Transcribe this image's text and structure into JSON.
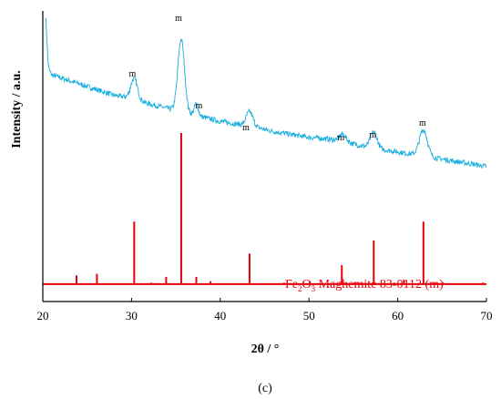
{
  "chart_data": {
    "type": "line",
    "xlabel": "2θ / °",
    "ylabel": "Intensity / a.u.",
    "xlim": [
      20,
      70
    ],
    "ylim": [
      0,
      100
    ],
    "x_ticks": [
      "20",
      "30",
      "40",
      "50",
      "60",
      "70"
    ],
    "panel_label": "(c)",
    "grid": false,
    "series": [
      {
        "kind": "xrd-pattern",
        "color": "#1aaee0",
        "background": [
          [
            20.3,
            82
          ],
          [
            21,
            78
          ],
          [
            22,
            77
          ],
          [
            23,
            76
          ],
          [
            24,
            75
          ],
          [
            25,
            74
          ],
          [
            26,
            73
          ],
          [
            27,
            72
          ],
          [
            28,
            71
          ],
          [
            29,
            70.5
          ],
          [
            30,
            70
          ],
          [
            32,
            68
          ],
          [
            34,
            66.5
          ],
          [
            36,
            65
          ],
          [
            38,
            63.5
          ],
          [
            40,
            62
          ],
          [
            42,
            61
          ],
          [
            44,
            60
          ],
          [
            46,
            58.5
          ],
          [
            48,
            57.5
          ],
          [
            50,
            56.5
          ],
          [
            52,
            56
          ],
          [
            54,
            55
          ],
          [
            56,
            53.5
          ],
          [
            58,
            52.5
          ],
          [
            60,
            51.5
          ],
          [
            62,
            50.5
          ],
          [
            64,
            49.5
          ],
          [
            66,
            48.5
          ],
          [
            68,
            47.5
          ],
          [
            70,
            46.5
          ]
        ],
        "peaks": [
          {
            "x": 20.3,
            "height": 16,
            "width": 0.2
          },
          {
            "x": 30.3,
            "height": 7,
            "width": 0.5
          },
          {
            "x": 35.6,
            "height": 25,
            "width": 0.5
          },
          {
            "x": 37.3,
            "height": 4,
            "width": 0.3
          },
          {
            "x": 43.3,
            "height": 5,
            "width": 0.5
          },
          {
            "x": 53.8,
            "height": 2.5,
            "width": 0.5
          },
          {
            "x": 57.3,
            "height": 5.5,
            "width": 0.5
          },
          {
            "x": 62.9,
            "height": 9,
            "width": 0.6
          }
        ],
        "noise": 0.9
      },
      {
        "name": "Fe2O3 Maghemite 83-0112 (m)",
        "kind": "reference-sticks",
        "color": "#e8000b",
        "baseline": 6,
        "x": [
          23.8,
          26.1,
          30.3,
          32.2,
          33.9,
          35.6,
          37.3,
          38.9,
          43.3,
          47.2,
          50.1,
          53.7,
          55.1,
          57.3,
          59.6,
          60.7,
          62.9,
          64.2,
          65.1,
          69.6
        ],
        "values": [
          9,
          9.5,
          27.5,
          6.5,
          8.5,
          58,
          8.5,
          7,
          16.5,
          6.5,
          7,
          12.5,
          6.5,
          21,
          6.5,
          7.5,
          27.5,
          6.5,
          6.5,
          6.5
        ]
      }
    ],
    "annotations": [
      {
        "text": "m",
        "x": 30.1,
        "y": 77.5
      },
      {
        "text": "m",
        "x": 35.3,
        "y": 96.5
      },
      {
        "text": "m",
        "x": 37.6,
        "y": 66.5
      },
      {
        "text": "m",
        "x": 42.9,
        "y": 59
      },
      {
        "text": "m",
        "x": 53.6,
        "y": 55.5
      },
      {
        "text": "m",
        "x": 57.2,
        "y": 56.5
      },
      {
        "text": "m",
        "x": 62.8,
        "y": 60.5
      }
    ],
    "reference_label": {
      "formula_main": "Fe",
      "formula_sub1": "2",
      "formula_mid": "O",
      "formula_sub2": "3",
      "rest": " Maghemite 83-0112 (m)"
    }
  }
}
